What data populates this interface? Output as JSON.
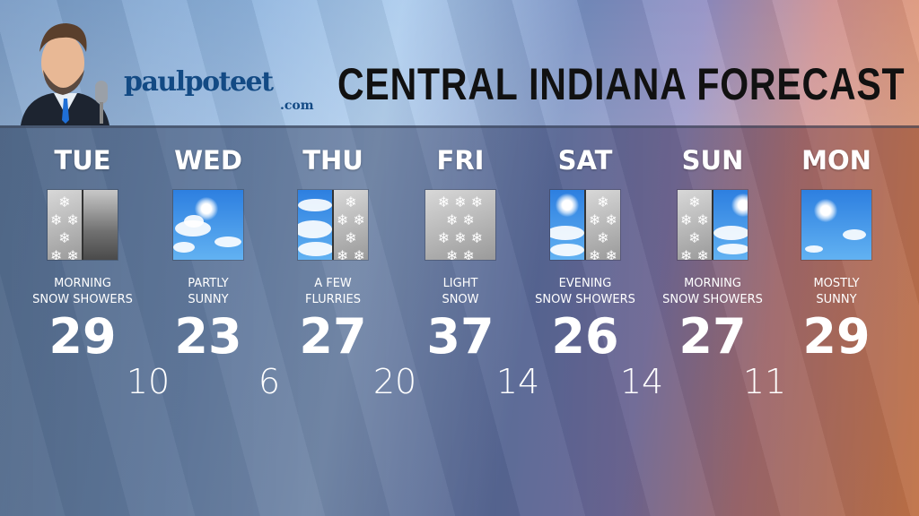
{
  "header": {
    "brand": "paulpoteet",
    "brand_suffix": ".com",
    "title": "CENTRAL INDIANA FORECAST"
  },
  "days": [
    {
      "day": "TUE",
      "desc1": "MORNING",
      "desc2": "SNOW SHOWERS",
      "high": "29",
      "icon": "snow-overcast-icon"
    },
    {
      "day": "WED",
      "desc1": "PARTLY",
      "desc2": "SUNNY",
      "high": "23",
      "icon": "partly-sunny-icon"
    },
    {
      "day": "THU",
      "desc1": "A FEW",
      "desc2": "FLURRIES",
      "high": "27",
      "icon": "clouds-flurries-icon"
    },
    {
      "day": "FRI",
      "desc1": "LIGHT",
      "desc2": "SNOW",
      "high": "37",
      "icon": "snow-icon"
    },
    {
      "day": "SAT",
      "desc1": "EVENING",
      "desc2": "SNOW SHOWERS",
      "high": "26",
      "icon": "sun-snow-icon"
    },
    {
      "day": "SUN",
      "desc1": "MORNING",
      "desc2": "SNOW SHOWERS",
      "high": "27",
      "icon": "snow-sun-icon"
    },
    {
      "day": "MON",
      "desc1": "MOSTLY",
      "desc2": "SUNNY",
      "high": "29",
      "icon": "mostly-sunny-icon"
    }
  ],
  "lows": [
    "10",
    "6",
    "20",
    "14",
    "14",
    "11"
  ]
}
